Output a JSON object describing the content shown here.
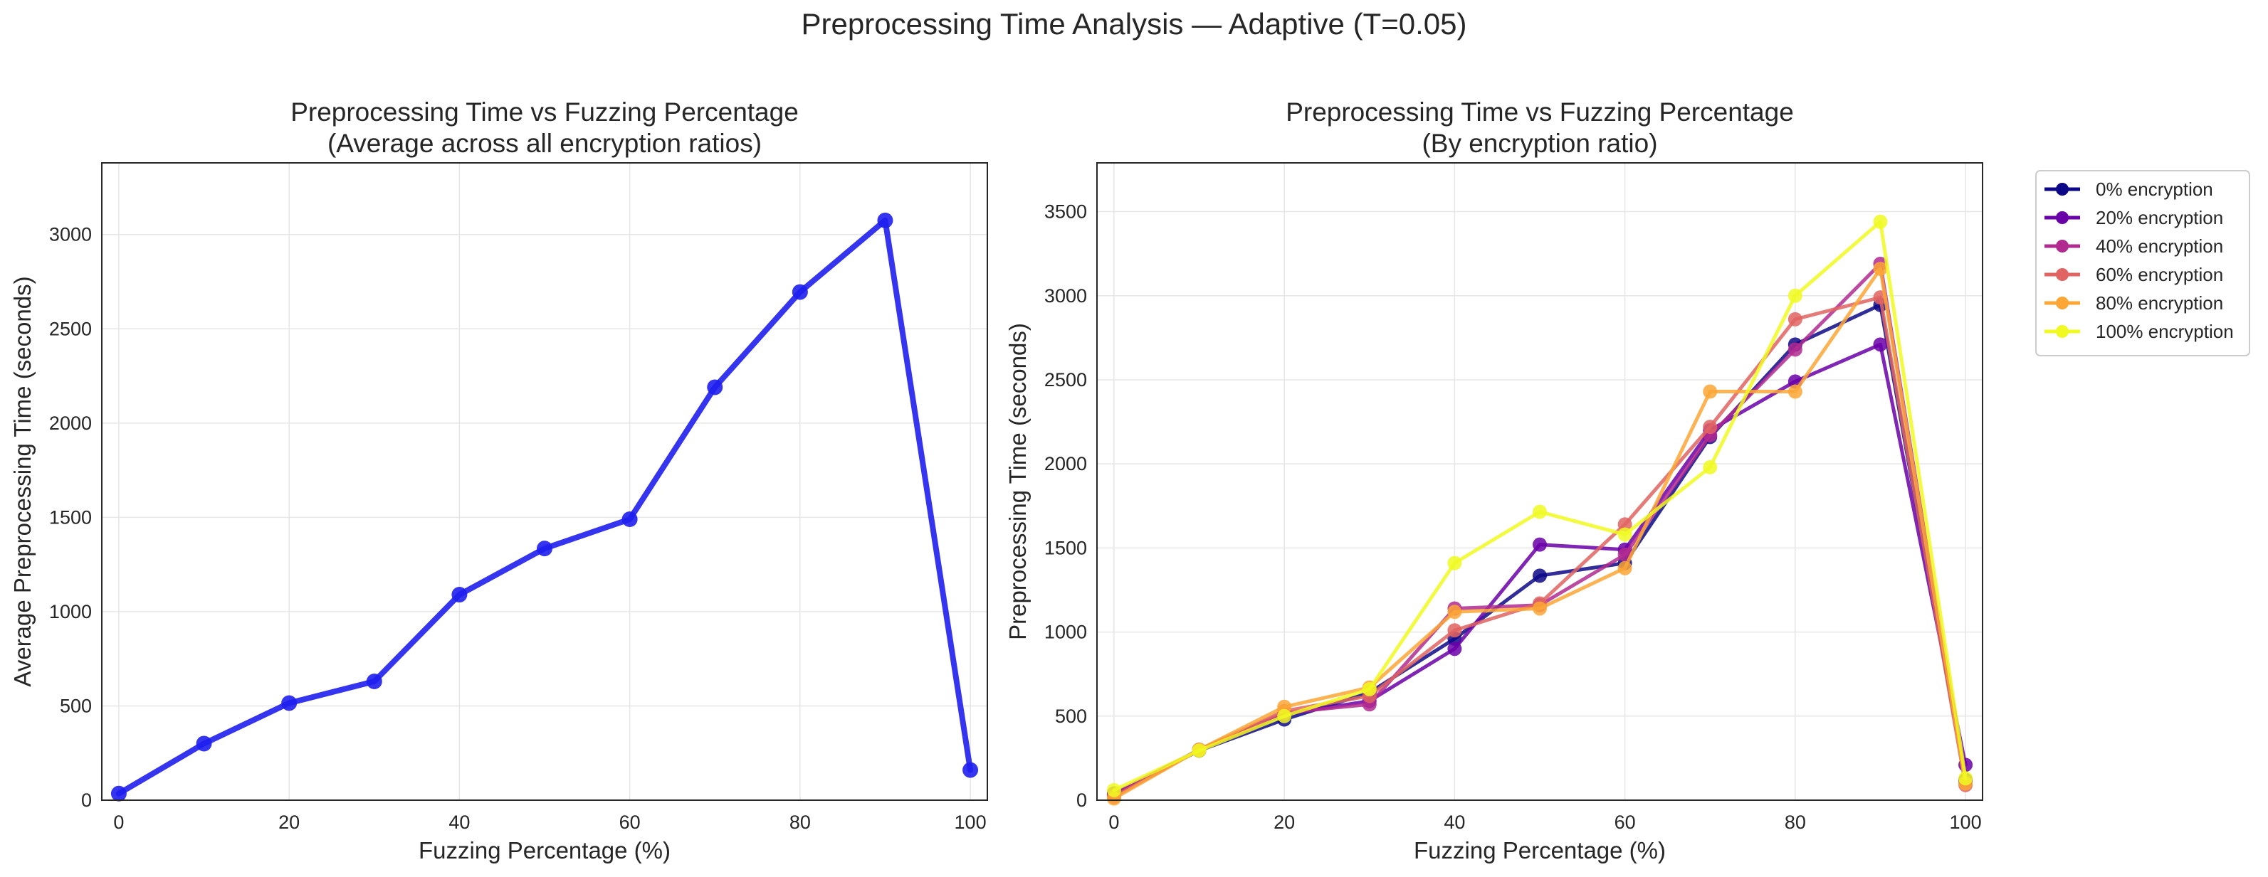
{
  "suptitle": "Preprocessing Time Analysis — Adaptive (T=0.05)",
  "colors": {
    "avg_line": "#1f1fee",
    "grid": "#e6e6e6",
    "axes_edge": "#262626"
  },
  "chart_data": [
    {
      "type": "line",
      "title_line1": "Preprocessing Time vs Fuzzing Percentage",
      "title_line2": "(Average across all encryption ratios)",
      "xlabel": "Fuzzing Percentage (%)",
      "ylabel": "Average Preprocessing Time (seconds)",
      "xlim": [
        -2,
        102
      ],
      "ylim": [
        0,
        3380
      ],
      "xticks": [
        0,
        20,
        40,
        60,
        80,
        100
      ],
      "yticks": [
        0,
        500,
        1000,
        1500,
        2000,
        2500,
        3000
      ],
      "grid": true,
      "x": [
        0,
        10,
        20,
        30,
        40,
        50,
        60,
        70,
        80,
        90,
        100
      ],
      "series": [
        {
          "values": [
            35,
            300,
            515,
            630,
            1090,
            1335,
            1490,
            2190,
            2695,
            3075,
            160
          ],
          "color": "#1f1fee"
        }
      ]
    },
    {
      "type": "line",
      "title_line1": "Preprocessing Time vs Fuzzing Percentage",
      "title_line2": "(By encryption ratio)",
      "xlabel": "Fuzzing Percentage (%)",
      "ylabel": "Preprocessing Time (seconds)",
      "xlim": [
        -2,
        102
      ],
      "ylim": [
        0,
        3790
      ],
      "xticks": [
        0,
        20,
        40,
        60,
        80,
        100
      ],
      "yticks": [
        0,
        500,
        1000,
        1500,
        2000,
        2500,
        3000,
        3500
      ],
      "grid": true,
      "legend_position": "outside-upper-right",
      "x": [
        0,
        10,
        20,
        30,
        40,
        50,
        60,
        70,
        80,
        90,
        100
      ],
      "series": [
        {
          "name": "0% encryption",
          "color": "#0d0887",
          "values": [
            40,
            295,
            480,
            640,
            960,
            1335,
            1410,
            2160,
            2710,
            2945,
            120
          ]
        },
        {
          "name": "20% encryption",
          "color": "#6a00a8",
          "values": [
            30,
            300,
            510,
            590,
            900,
            1520,
            1490,
            2200,
            2490,
            2710,
            210
          ]
        },
        {
          "name": "40% encryption",
          "color": "#b12a90",
          "values": [
            35,
            300,
            520,
            570,
            1140,
            1160,
            1460,
            2170,
            2680,
            3190,
            110
          ]
        },
        {
          "name": "60% encryption",
          "color": "#e16462",
          "values": [
            20,
            300,
            530,
            620,
            1010,
            1170,
            1640,
            2220,
            2860,
            2990,
            90
          ]
        },
        {
          "name": "80% encryption",
          "color": "#fca636",
          "values": [
            10,
            300,
            555,
            670,
            1120,
            1140,
            1380,
            2430,
            2430,
            3160,
            100
          ]
        },
        {
          "name": "100% encryption",
          "color": "#f0f921",
          "values": [
            60,
            295,
            500,
            660,
            1410,
            1715,
            1580,
            1980,
            3000,
            3440,
            130
          ]
        }
      ]
    }
  ]
}
